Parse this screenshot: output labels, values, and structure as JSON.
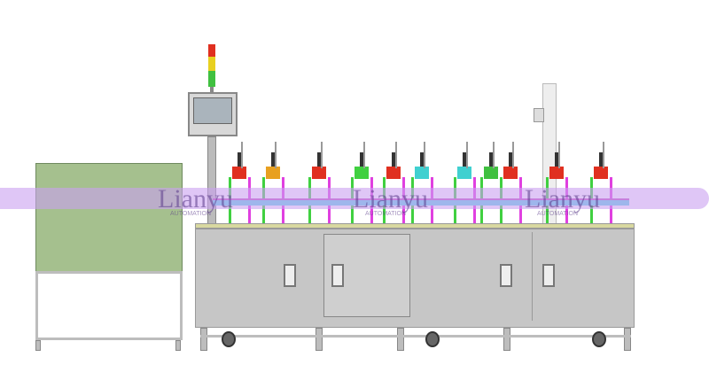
{
  "image": {
    "subject": "automated assembly line machine render",
    "watermark": {
      "brand": "Lianyu",
      "sub": "AUTOMATION"
    },
    "colors": {
      "frame": "#c6c6c6",
      "enclosure": "#a5c08e",
      "watermark_band": "#c9a0f0",
      "tower_red": "#e03020",
      "tower_yellow": "#e8d020",
      "tower_green": "#40c040"
    }
  }
}
